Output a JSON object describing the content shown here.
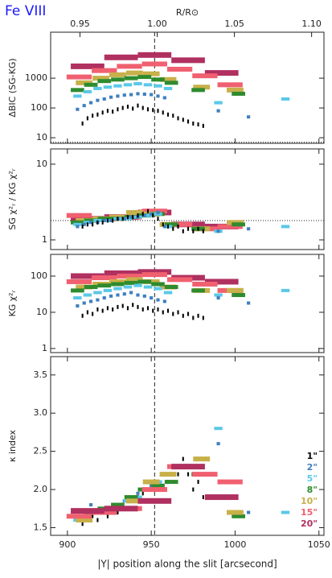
{
  "title": "Fe VIII",
  "chart_data": [
    {
      "type": "bar",
      "ylabel": "ΔBIC (SG-KG)",
      "log": true,
      "xlim": [
        890,
        1053
      ],
      "xticks": [
        900,
        950,
        1000,
        1050
      ],
      "x2label": "R/R⊙",
      "x2lim": [
        0.931,
        1.108
      ],
      "x2ticks": [
        0.95,
        {
          "value": 1,
          "label": "1.00"
        },
        1.05,
        {
          "value": 1.1,
          "label": "1.10"
        }
      ],
      "ylim": [
        6.5,
        35000
      ],
      "yticks": [
        10,
        100,
        1000
      ],
      "reference_x": 952,
      "reference_y": 7,
      "series": [
        {
          "color": "#b03060",
          "bin_width": 20,
          "x": [
            912,
            932,
            952,
            972,
            992
          ],
          "values": [
            2500,
            5000,
            6000,
            4000,
            1500
          ]
        },
        {
          "color": "#f06070",
          "bin_width": 15,
          "x": [
            907,
            922,
            937,
            952,
            967,
            982,
            997
          ],
          "values": [
            1100,
            1800,
            2500,
            3000,
            2000,
            1200,
            600
          ]
        },
        {
          "color": "#c8b04a",
          "bin_width": 10,
          "x": [
            910,
            920,
            930,
            940,
            950,
            960,
            980,
            1000
          ],
          "values": [
            700,
            1000,
            1300,
            1500,
            1400,
            900,
            500,
            400
          ]
        },
        {
          "color": "#2e8b2e",
          "bin_width": 8,
          "x": [
            906,
            914,
            922,
            930,
            938,
            946,
            954,
            962,
            978,
            1002
          ],
          "values": [
            400,
            600,
            800,
            900,
            1000,
            1100,
            900,
            700,
            400,
            300
          ]
        },
        {
          "color": "#5bc8e8",
          "bin_width": 5,
          "x": [
            906,
            912,
            918,
            924,
            930,
            936,
            942,
            948,
            954,
            960,
            990,
            1030
          ],
          "values": [
            250,
            350,
            450,
            500,
            550,
            600,
            650,
            600,
            550,
            450,
            150,
            200
          ]
        },
        {
          "color": "#3f7fbf",
          "bin_width": 2,
          "x": [
            906,
            910,
            914,
            918,
            922,
            926,
            930,
            934,
            938,
            942,
            946,
            950,
            954,
            958,
            990,
            1008
          ],
          "values": [
            90,
            120,
            150,
            180,
            200,
            230,
            250,
            270,
            280,
            300,
            290,
            280,
            250,
            220,
            80,
            50
          ]
        },
        {
          "color": "#000000",
          "bin_width": 1,
          "x": [
            909,
            912,
            915,
            918,
            921,
            924,
            927,
            930,
            933,
            936,
            939,
            942,
            945,
            948,
            951,
            954,
            957,
            960,
            963,
            966,
            969,
            972,
            975,
            978,
            981
          ],
          "values": [
            30,
            45,
            55,
            60,
            70,
            80,
            75,
            90,
            100,
            110,
            95,
            120,
            100,
            90,
            85,
            80,
            70,
            60,
            55,
            45,
            40,
            35,
            30,
            28,
            25
          ]
        }
      ]
    },
    {
      "type": "bar",
      "ylabel": "SG χ²ᵣ / KG χ²ᵣ",
      "log": true,
      "xlim": [
        890,
        1053
      ],
      "xticks": [
        900,
        950,
        1000,
        1050
      ],
      "ylim": [
        0.745,
        15.9
      ],
      "yticks": [
        1,
        10
      ],
      "reference_x": 952,
      "reference_y": 1.8,
      "series": [
        {
          "color": "#b03060",
          "bin_width": 20,
          "x": [
            912,
            932,
            952,
            972,
            992
          ],
          "values": [
            1.9,
            2.0,
            2.3,
            1.6,
            1.5
          ]
        },
        {
          "color": "#f06070",
          "bin_width": 15,
          "x": [
            907,
            922,
            937,
            952,
            967,
            982,
            997
          ],
          "values": [
            2.1,
            1.9,
            2.0,
            2.4,
            1.6,
            1.4,
            1.5
          ]
        },
        {
          "color": "#c8b04a",
          "bin_width": 10,
          "x": [
            910,
            920,
            930,
            940,
            950,
            960,
            980,
            1000
          ],
          "values": [
            1.8,
            1.9,
            2.0,
            2.3,
            2.2,
            1.6,
            1.4,
            1.7
          ]
        },
        {
          "color": "#2e8b2e",
          "bin_width": 8,
          "x": [
            906,
            914,
            922,
            930,
            938,
            946,
            954,
            962,
            978,
            1002
          ],
          "values": [
            1.7,
            1.8,
            1.9,
            1.9,
            2.0,
            2.1,
            2.2,
            1.6,
            1.4,
            1.6
          ]
        },
        {
          "color": "#5bc8e8",
          "bin_width": 5,
          "x": [
            906,
            912,
            918,
            924,
            930,
            936,
            942,
            948,
            954,
            960,
            990,
            1030
          ],
          "values": [
            1.6,
            1.7,
            1.8,
            1.8,
            1.9,
            1.9,
            2.0,
            2.1,
            2.2,
            1.5,
            1.3,
            1.5
          ]
        },
        {
          "color": "#3f7fbf",
          "bin_width": 2,
          "x": [
            906,
            910,
            914,
            918,
            922,
            926,
            930,
            934,
            938,
            942,
            946,
            950,
            954,
            958,
            990,
            1008
          ],
          "values": [
            1.5,
            1.6,
            1.7,
            1.7,
            1.8,
            1.8,
            1.9,
            1.9,
            2.0,
            2.0,
            2.1,
            2.2,
            2.3,
            1.5,
            1.3,
            1.4
          ]
        },
        {
          "color": "#000000",
          "bin_width": 1,
          "x": [
            909,
            912,
            915,
            918,
            921,
            924,
            927,
            930,
            933,
            936,
            939,
            942,
            945,
            948,
            951,
            954,
            957,
            960,
            963,
            966,
            969,
            972,
            975,
            978,
            981
          ],
          "values": [
            1.5,
            1.6,
            1.6,
            1.7,
            1.7,
            1.8,
            1.8,
            1.9,
            1.9,
            2.0,
            2.0,
            2.1,
            2.2,
            2.4,
            2.1,
            1.9,
            1.6,
            1.5,
            1.4,
            1.5,
            1.3,
            1.4,
            1.3,
            1.4,
            1.3
          ]
        }
      ]
    },
    {
      "type": "bar",
      "ylabel": "KG χ²ᵣ",
      "log": true,
      "xlim": [
        890,
        1053
      ],
      "xticks": [
        900,
        950,
        1000,
        1050
      ],
      "ylim": [
        0.77,
        398
      ],
      "yticks": [
        1,
        10,
        100
      ],
      "reference_x": 952,
      "series": [
        {
          "color": "#b03060",
          "bin_width": 20,
          "x": [
            912,
            932,
            952,
            972,
            992
          ],
          "values": [
            100,
            120,
            130,
            90,
            70
          ]
        },
        {
          "color": "#f06070",
          "bin_width": 15,
          "x": [
            907,
            922,
            937,
            952,
            967,
            982,
            997
          ],
          "values": [
            70,
            90,
            100,
            110,
            80,
            60,
            40
          ]
        },
        {
          "color": "#c8b04a",
          "bin_width": 10,
          "x": [
            910,
            920,
            930,
            940,
            950,
            960,
            980,
            1000
          ],
          "values": [
            50,
            60,
            70,
            80,
            70,
            50,
            40,
            40
          ]
        },
        {
          "color": "#2e8b2e",
          "bin_width": 8,
          "x": [
            906,
            914,
            922,
            930,
            938,
            946,
            954,
            962,
            978,
            1002
          ],
          "values": [
            40,
            50,
            55,
            60,
            65,
            70,
            60,
            50,
            40,
            30
          ]
        },
        {
          "color": "#5bc8e8",
          "bin_width": 5,
          "x": [
            906,
            912,
            918,
            924,
            930,
            936,
            942,
            948,
            954,
            960,
            990,
            1030
          ],
          "values": [
            25,
            30,
            35,
            40,
            45,
            50,
            55,
            50,
            45,
            35,
            30,
            40
          ]
        },
        {
          "color": "#3f7fbf",
          "bin_width": 2,
          "x": [
            906,
            910,
            914,
            918,
            922,
            926,
            930,
            934,
            938,
            942,
            946,
            950,
            954,
            958,
            990,
            1008
          ],
          "values": [
            15,
            18,
            20,
            22,
            25,
            28,
            30,
            32,
            35,
            30,
            28,
            25,
            22,
            20,
            25,
            18
          ]
        },
        {
          "color": "#000000",
          "bin_width": 1,
          "x": [
            909,
            912,
            915,
            918,
            921,
            924,
            927,
            930,
            933,
            936,
            939,
            942,
            945,
            948,
            951,
            954,
            957,
            960,
            963,
            966,
            969,
            972,
            975,
            978,
            981
          ],
          "values": [
            8,
            10,
            9,
            12,
            11,
            13,
            12,
            14,
            15,
            13,
            16,
            14,
            12,
            13,
            11,
            12,
            10,
            11,
            9,
            10,
            8,
            9,
            7,
            8,
            7
          ]
        }
      ]
    },
    {
      "type": "bar",
      "ylabel": "κ index",
      "log": false,
      "xlabel": "|Y| position along the slit [arcsecond]",
      "xlim": [
        890,
        1053
      ],
      "xticks": [
        900,
        950,
        1000,
        1050
      ],
      "ylim": [
        1.4,
        3.74
      ],
      "yticks": [
        1.5,
        {
          "value": 2,
          "label": "2.0"
        },
        2.5,
        {
          "value": 3,
          "label": "3.0"
        },
        3.5
      ],
      "reference_x": 952,
      "legend": "lower right",
      "series": [
        {
          "name": "1\"",
          "color": "#000000",
          "bin_width": 1,
          "x": [
            909,
            912,
            915,
            918,
            921,
            924,
            927,
            930,
            933,
            936,
            939,
            942,
            945,
            948,
            951,
            954,
            957,
            960,
            963,
            966,
            969,
            972,
            975,
            978,
            981
          ],
          "values": [
            1.55,
            1.6,
            1.65,
            1.6,
            1.7,
            1.65,
            1.75,
            1.7,
            1.8,
            1.75,
            1.85,
            1.9,
            1.95,
            2.0,
            2.05,
            2.1,
            2.2,
            2.1,
            2.3,
            2.2,
            2.4,
            2.2,
            2.0,
            2.1,
            1.9
          ]
        },
        {
          "name": "2\"",
          "color": "#3f7fbf",
          "bin_width": 2,
          "x": [
            906,
            910,
            914,
            918,
            922,
            926,
            930,
            934,
            938,
            942,
            946,
            950,
            954,
            958,
            990,
            1008
          ],
          "values": [
            1.6,
            1.65,
            1.8,
            1.7,
            1.75,
            1.7,
            1.8,
            1.85,
            1.9,
            1.95,
            2.0,
            2.05,
            2.1,
            2.2,
            2.6,
            1.7
          ]
        },
        {
          "name": "5\"",
          "color": "#5bc8e8",
          "bin_width": 5,
          "x": [
            906,
            912,
            918,
            924,
            930,
            936,
            942,
            948,
            954,
            960,
            990,
            1030
          ],
          "values": [
            1.6,
            1.65,
            1.7,
            1.75,
            1.8,
            1.85,
            1.9,
            2.0,
            2.1,
            2.2,
            2.8,
            1.7
          ]
        },
        {
          "name": "8\"",
          "color": "#2e8b2e",
          "bin_width": 8,
          "x": [
            906,
            914,
            922,
            930,
            938,
            946,
            954,
            962,
            978,
            1002
          ],
          "values": [
            1.65,
            1.7,
            1.75,
            1.8,
            1.9,
            2.0,
            2.05,
            2.1,
            2.2,
            1.65
          ]
        },
        {
          "name": "10\"",
          "color": "#c8b04a",
          "bin_width": 10,
          "x": [
            910,
            920,
            930,
            940,
            950,
            960,
            980,
            1000
          ],
          "values": [
            1.6,
            1.7,
            1.75,
            1.85,
            2.1,
            2.2,
            2.4,
            1.7
          ]
        },
        {
          "name": "15\"",
          "color": "#f06070",
          "bin_width": 15,
          "x": [
            907,
            922,
            937,
            952,
            967,
            982,
            997
          ],
          "values": [
            1.65,
            1.7,
            1.75,
            2.0,
            2.3,
            2.2,
            2.1
          ]
        },
        {
          "name": "20\"",
          "color": "#b03060",
          "bin_width": 20,
          "x": [
            912,
            932,
            952,
            972,
            992
          ],
          "values": [
            1.72,
            1.75,
            1.85,
            2.3,
            1.9
          ]
        }
      ]
    }
  ]
}
